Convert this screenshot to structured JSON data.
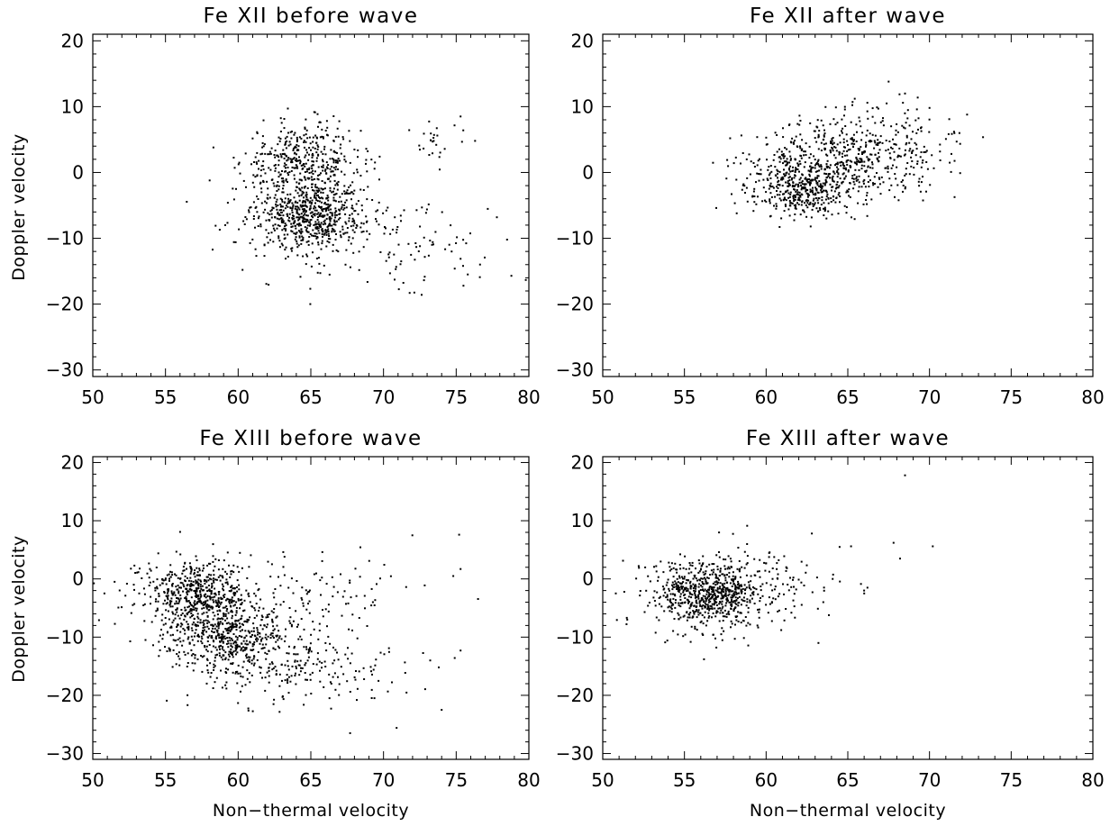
{
  "chart_data": [
    {
      "type": "scatter",
      "title": "Fe XII before wave",
      "xlabel": "",
      "ylabel": "Doppler velocity",
      "xlim": [
        50,
        80
      ],
      "ylim": [
        -31,
        21
      ],
      "x_ticks": [
        "50",
        "55",
        "60",
        "65",
        "70",
        "75",
        "80"
      ],
      "y_ticks": [
        "20",
        "10",
        "0",
        "−10",
        "−20",
        "−30"
      ],
      "grid": false,
      "clusters": [
        {
          "center": [
            64.5,
            1.5
          ],
          "spread": [
            2.0,
            3.0
          ],
          "count": 420
        },
        {
          "center": [
            65.0,
            -6.5
          ],
          "spread": [
            1.8,
            2.6
          ],
          "count": 520
        },
        {
          "center": [
            66.0,
            -8.0
          ],
          "spread": [
            3.5,
            4.0
          ],
          "count": 160
        },
        {
          "center": [
            73.5,
            4.5
          ],
          "spread": [
            1.2,
            2.0
          ],
          "count": 25
        },
        {
          "center": [
            72.5,
            -11.0
          ],
          "spread": [
            3.0,
            3.5
          ],
          "count": 60
        }
      ],
      "extra_points": [
        [
          75.5,
          -17.2
        ],
        [
          76.3,
          4.8
        ],
        [
          77.8,
          -6.8
        ],
        [
          78.5,
          -10.2
        ],
        [
          78.8,
          -15.7
        ],
        [
          75.8,
          -15.5
        ],
        [
          58.3,
          3.8
        ],
        [
          60.3,
          -14.8
        ],
        [
          71.8,
          -18.3
        ],
        [
          75.3,
          8.5
        ]
      ]
    },
    {
      "type": "scatter",
      "title": "Fe XII after wave",
      "xlabel": "",
      "ylabel": "",
      "xlim": [
        50,
        80
      ],
      "ylim": [
        -31,
        21
      ],
      "x_ticks": [
        "50",
        "55",
        "60",
        "65",
        "70",
        "75",
        "80"
      ],
      "y_ticks": [
        "20",
        "10",
        "0",
        "−10",
        "−20",
        "−30"
      ],
      "grid": false,
      "clusters": [
        {
          "center": [
            62.2,
            -2.8
          ],
          "spread": [
            1.6,
            2.0
          ],
          "count": 380
        },
        {
          "center": [
            64.2,
            1.8
          ],
          "spread": [
            2.6,
            3.0
          ],
          "count": 480
        },
        {
          "center": [
            68.0,
            4.5
          ],
          "spread": [
            2.0,
            3.2
          ],
          "count": 130
        }
      ],
      "extra_points": [
        [
          72.3,
          8.8
        ],
        [
          71.5,
          6.2
        ],
        [
          67.5,
          13.8
        ],
        [
          68.5,
          12.0
        ],
        [
          57.8,
          5.2
        ],
        [
          58.2,
          -6.2
        ],
        [
          70.0,
          9.8
        ],
        [
          69.8,
          -2.9
        ]
      ]
    },
    {
      "type": "scatter",
      "title": "Fe XIII before wave",
      "xlabel": "Non−thermal velocity",
      "ylabel": "Doppler velocity",
      "xlim": [
        50,
        80
      ],
      "ylim": [
        -31,
        21
      ],
      "x_ticks": [
        "50",
        "55",
        "60",
        "65",
        "70",
        "75",
        "80"
      ],
      "y_ticks": [
        "20",
        "10",
        "0",
        "−10",
        "−20",
        "−30"
      ],
      "grid": false,
      "clusters": [
        {
          "center": [
            57.0,
            -2.5
          ],
          "spread": [
            2.0,
            3.0
          ],
          "count": 520
        },
        {
          "center": [
            59.0,
            -9.5
          ],
          "spread": [
            2.2,
            3.2
          ],
          "count": 560
        },
        {
          "center": [
            64.5,
            -15.0
          ],
          "spread": [
            3.5,
            3.5
          ],
          "count": 220
        },
        {
          "center": [
            66.0,
            -2.0
          ],
          "spread": [
            3.5,
            3.5
          ],
          "count": 90
        }
      ],
      "extra_points": [
        [
          75.2,
          7.6
        ],
        [
          75.3,
          1.7
        ],
        [
          74.8,
          0.5
        ],
        [
          74.0,
          -22.5
        ],
        [
          73.8,
          -15.2
        ],
        [
          75.3,
          -12.3
        ],
        [
          70.9,
          -25.6
        ],
        [
          67.7,
          -26.5
        ],
        [
          50.8,
          -2.5
        ],
        [
          51.5,
          -0.5
        ]
      ]
    },
    {
      "type": "scatter",
      "title": "Fe XIII after wave",
      "xlabel": "Non−thermal velocity",
      "ylabel": "",
      "xlim": [
        50,
        80
      ],
      "ylim": [
        -31,
        21
      ],
      "x_ticks": [
        "50",
        "55",
        "60",
        "65",
        "70",
        "75",
        "80"
      ],
      "y_ticks": [
        "20",
        "10",
        "0",
        "−10",
        "−20",
        "−30"
      ],
      "grid": false,
      "clusters": [
        {
          "center": [
            56.5,
            -2.5
          ],
          "spread": [
            1.7,
            2.8
          ],
          "count": 700
        },
        {
          "center": [
            59.5,
            -1.0
          ],
          "spread": [
            2.5,
            3.8
          ],
          "count": 130
        }
      ],
      "extra_points": [
        [
          68.5,
          17.8
        ],
        [
          70.2,
          5.6
        ],
        [
          67.8,
          6.2
        ],
        [
          68.2,
          3.5
        ],
        [
          66.2,
          -1.5
        ],
        [
          66.0,
          -2.0
        ],
        [
          65.2,
          5.6
        ],
        [
          64.5,
          5.5
        ],
        [
          63.5,
          -4.0
        ],
        [
          63.2,
          -11.0
        ],
        [
          56.2,
          -13.8
        ],
        [
          50.8,
          -2.5
        ],
        [
          51.5,
          -7.0
        ],
        [
          62.8,
          7.8
        ]
      ]
    }
  ]
}
